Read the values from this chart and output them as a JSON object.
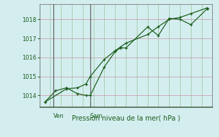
{
  "xlabel": "Pression niveau de la mer( hPa )",
  "bg_color": "#d4eef0",
  "line_color": "#1a5c1a",
  "grid_color_h": "#c8a0a8",
  "grid_color_v": "#a0c8a0",
  "vline_color": "#606060",
  "border_color": "#2a4a2a",
  "ylim": [
    1013.4,
    1018.8
  ],
  "xlim": [
    -0.5,
    15.5
  ],
  "yticks": [
    1014,
    1015,
    1016,
    1017,
    1018
  ],
  "ven_x": 0.8,
  "sam_x": 4.2,
  "num_vcols": 16,
  "line1_x": [
    0,
    1,
    2,
    3,
    3.8,
    4.2,
    5.5,
    6.5,
    7.0,
    7.5,
    9.5,
    10.5,
    11.5,
    12.5,
    13.5,
    15.0
  ],
  "line1_y": [
    1013.65,
    1014.25,
    1014.4,
    1014.1,
    1014.0,
    1014.0,
    1015.5,
    1016.3,
    1016.5,
    1016.5,
    1017.6,
    1017.15,
    1018.05,
    1018.0,
    1017.72,
    1018.55
  ],
  "line2_x": [
    0,
    2,
    3,
    3.8,
    4.2,
    5.5,
    6.5,
    7.0,
    7.5,
    9.5,
    10.5,
    11.5,
    12.5,
    13.5,
    15.0
  ],
  "line2_y": [
    1013.65,
    1014.35,
    1014.4,
    1014.6,
    1015.0,
    1015.9,
    1016.35,
    1016.55,
    1016.75,
    1017.2,
    1017.62,
    1018.0,
    1018.1,
    1018.3,
    1018.6
  ],
  "ytick_fontsize": 6,
  "xlabel_fontsize": 7
}
